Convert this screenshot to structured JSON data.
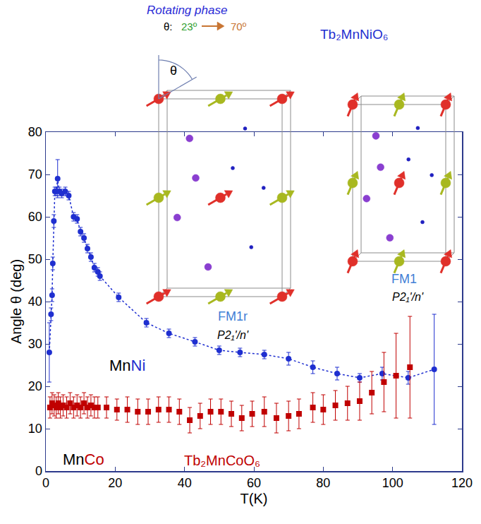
{
  "chart_data": {
    "type": "scatter",
    "xlabel": "T(K)",
    "ylabel": "Angle θ (deg)",
    "xlim": [
      0,
      120
    ],
    "xticks": [
      0,
      20,
      40,
      60,
      80,
      100,
      120
    ],
    "ylim": [
      0,
      80
    ],
    "yticks": [
      0,
      10,
      20,
      30,
      40,
      50,
      60,
      70,
      80
    ],
    "grid": false,
    "series": [
      {
        "label_parts": [
          "Mn",
          "Ni"
        ],
        "compound": "Tb₂MnNiO₆",
        "color": "#1f2fd0",
        "marker": "circle",
        "line_style": "dotted",
        "x": [
          1.0,
          1.5,
          1.8,
          2.0,
          2.3,
          2.6,
          3.0,
          3.4,
          3.9,
          4.6,
          5.6,
          6.6,
          8.0,
          9.0,
          10.0,
          11.0,
          12.0,
          13.0,
          14.0,
          15.0,
          15.6,
          21.0,
          29.0,
          35.5,
          43.0,
          50.0,
          56.0,
          63.0,
          70.0,
          77.0,
          84.0,
          90.5,
          97.0,
          104.5,
          112.0
        ],
        "values": [
          28,
          37,
          41.5,
          49,
          59,
          66,
          66,
          69,
          66,
          65.5,
          66,
          65,
          60,
          59.5,
          56.5,
          55,
          52.5,
          50.5,
          48,
          47,
          46,
          41,
          35,
          32.5,
          30.5,
          28.5,
          28,
          27.5,
          26.5,
          24.5,
          23,
          22,
          23,
          22,
          24
        ],
        "errors": [
          7,
          1.5,
          1.5,
          1.5,
          1.5,
          1,
          1,
          4.5,
          1,
          1,
          1,
          1,
          1,
          1,
          1,
          1,
          1,
          1,
          1,
          1,
          1,
          1,
          1,
          1,
          1,
          1,
          1,
          1,
          1.5,
          1.5,
          1.5,
          1,
          1.5,
          1.5,
          13
        ]
      },
      {
        "label_parts": [
          "Mn",
          "Co"
        ],
        "compound": "Tb₂MnCoO₆",
        "color": "#c00000",
        "marker": "square",
        "x": [
          1.2,
          1.8,
          2.4,
          3.0,
          3.6,
          4.2,
          5.0,
          6.0,
          7.0,
          8.0,
          9.0,
          10.0,
          11.0,
          12.0,
          13.0,
          14.0,
          15.0,
          17.5,
          20.5,
          23.5,
          26.5,
          29.5,
          32.5,
          35.5,
          38.5,
          41.5,
          44.5,
          47.5,
          50.5,
          53.5,
          56.5,
          59.5,
          63.0,
          66.5,
          70.0,
          73.0,
          77.0,
          80.0,
          83.5,
          87.0,
          90.5,
          94.0,
          97.5,
          101.0,
          105.0
        ],
        "values": [
          15,
          16,
          15.5,
          15,
          16,
          15,
          15.5,
          15,
          16,
          15,
          15.5,
          15,
          16,
          15,
          15.5,
          15,
          15,
          15,
          14.5,
          14.5,
          14,
          14,
          14.5,
          14.5,
          14,
          12,
          13,
          14,
          14,
          13.5,
          12.5,
          13.5,
          14,
          12.5,
          13,
          13.5,
          15,
          14.5,
          15.5,
          16,
          16.5,
          18.5,
          21,
          22.5,
          24.5
        ],
        "errors": [
          2.5,
          2.5,
          2.5,
          2.5,
          2.5,
          2.5,
          2.5,
          2.5,
          2.5,
          2.5,
          2.5,
          2.5,
          2.5,
          2.5,
          2.5,
          2.5,
          2.5,
          2.5,
          2.5,
          3,
          3,
          3,
          3,
          3,
          3,
          3,
          3,
          3,
          3,
          3,
          3,
          3,
          3.5,
          3.5,
          3.5,
          3.5,
          3.5,
          3.5,
          3.5,
          4,
          4.5,
          5,
          7,
          10,
          12
        ]
      }
    ],
    "annotations": {
      "rotating_phase": "Rotating phase",
      "theta_symbol": "θ",
      "theta_prefix": "θ:",
      "theta_from": "23º",
      "theta_to": "70º",
      "structures": [
        {
          "phase": "FM1r",
          "space_group": "P2₁'/n'"
        },
        {
          "phase": "FM1",
          "space_group": "P2₁'/n'"
        }
      ]
    }
  }
}
